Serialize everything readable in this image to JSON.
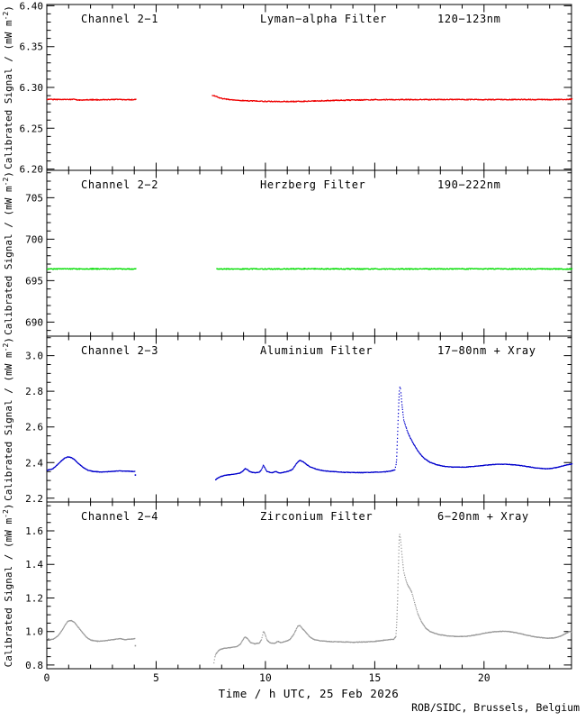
{
  "footer": {
    "credit": "ROB/SIDC, Brussels, Belgium"
  },
  "chart_data": {
    "type": "line",
    "xtitle": "Time / h UTC, 25 Feb 2026",
    "ytitle": "Calibrated Signal / (mW m⁻²)",
    "xlim": [
      0,
      24
    ],
    "xticks": [
      0,
      5,
      10,
      15,
      20
    ],
    "xtick_labels": [
      "0",
      "5",
      "10",
      "15",
      "20"
    ],
    "x_minor_step": 1,
    "grid": false,
    "panels": [
      {
        "channel": "Channel 2−1",
        "filter": "Lyman−alpha Filter",
        "band": "120−123nm",
        "color": "#ee0000",
        "ylim": [
          6.1985,
          6.4015
        ],
        "yticks": [
          6.2,
          6.25,
          6.3,
          6.35,
          6.4
        ],
        "ytick_labels": [
          "6.20",
          "6.25",
          "6.30",
          "6.35",
          "6.40"
        ],
        "y_minor_step": 0.01,
        "noise": 0.0005,
        "segments": [
          [
            [
              0,
              6.2855
            ],
            [
              0.6,
              6.285
            ],
            [
              1.2,
              6.2853
            ],
            [
              1.5,
              6.2845
            ],
            [
              1.8,
              6.285
            ],
            [
              2.4,
              6.2848
            ],
            [
              3.0,
              6.2852
            ],
            [
              3.6,
              6.285
            ],
            [
              4.05,
              6.285
            ]
          ],
          [
            [
              7.55,
              6.2905
            ],
            [
              7.7,
              6.289
            ],
            [
              7.9,
              6.287
            ],
            [
              8.2,
              6.2855
            ],
            [
              8.6,
              6.2845
            ],
            [
              9.0,
              6.2838
            ],
            [
              9.5,
              6.2833
            ],
            [
              10.0,
              6.283
            ],
            [
              10.6,
              6.2828
            ],
            [
              11.2,
              6.2827
            ],
            [
              11.8,
              6.283
            ],
            [
              12.4,
              6.2835
            ],
            [
              13.0,
              6.284
            ],
            [
              13.8,
              6.2845
            ],
            [
              14.6,
              6.2848
            ],
            [
              15.5,
              6.285
            ],
            [
              17.0,
              6.285
            ],
            [
              18.5,
              6.2852
            ],
            [
              20.0,
              6.285
            ],
            [
              21.5,
              6.2852
            ],
            [
              23.0,
              6.285
            ],
            [
              24.0,
              6.2855
            ]
          ]
        ]
      },
      {
        "channel": "Channel 2−2",
        "filter": "Herzberg Filter",
        "band": "190−222nm",
        "color": "#00dd00",
        "ylim": [
          688.3,
          708.3
        ],
        "yticks": [
          690,
          695,
          700,
          705
        ],
        "ytick_labels": [
          "690",
          "695",
          "700",
          "705"
        ],
        "y_minor_step": 1,
        "noise": 0.05,
        "segments": [
          [
            [
              0,
              696.4
            ],
            [
              2.0,
              696.42
            ],
            [
              4.05,
              696.4
            ]
          ],
          [
            [
              7.75,
              696.4
            ],
            [
              12.0,
              696.42
            ],
            [
              16.0,
              696.4
            ],
            [
              20.0,
              696.42
            ],
            [
              24.0,
              696.4
            ]
          ]
        ]
      },
      {
        "channel": "Channel 2−3",
        "filter": "Aluminium Filter",
        "band": "17−80nm + Xray",
        "color": "#0000cc",
        "ylim": [
          2.179,
          3.109
        ],
        "yticks": [
          2.2,
          2.4,
          2.6,
          2.8,
          3.0
        ],
        "ytick_labels": [
          "2.2",
          "2.4",
          "2.6",
          "2.8",
          "3.0"
        ],
        "y_minor_step": 0.05,
        "noise": 0.0012,
        "segments": [
          [
            [
              0,
              2.358
            ],
            [
              0.2,
              2.362
            ],
            [
              0.35,
              2.375
            ],
            [
              0.5,
              2.392
            ],
            [
              0.65,
              2.41
            ],
            [
              0.8,
              2.425
            ],
            [
              0.95,
              2.432
            ],
            [
              1.1,
              2.428
            ],
            [
              1.25,
              2.415
            ],
            [
              1.45,
              2.392
            ],
            [
              1.65,
              2.372
            ],
            [
              1.85,
              2.358
            ],
            [
              2.1,
              2.35
            ],
            [
              2.5,
              2.347
            ],
            [
              2.9,
              2.35
            ],
            [
              3.3,
              2.353
            ],
            [
              3.7,
              2.352
            ],
            [
              4.0,
              2.35
            ]
          ],
          [
            [
              4.05,
              2.33
            ]
          ],
          [
            [
              7.7,
              2.303
            ],
            [
              7.78,
              2.312
            ],
            [
              7.9,
              2.32
            ],
            [
              8.1,
              2.328
            ],
            [
              8.35,
              2.332
            ],
            [
              8.6,
              2.336
            ],
            [
              8.8,
              2.341
            ],
            [
              8.95,
              2.353
            ],
            [
              9.05,
              2.366
            ],
            [
              9.15,
              2.36
            ],
            [
              9.3,
              2.347
            ],
            [
              9.5,
              2.342
            ],
            [
              9.7,
              2.347
            ],
            [
              9.8,
              2.36
            ],
            [
              9.88,
              2.387
            ],
            [
              9.95,
              2.37
            ],
            [
              10.05,
              2.35
            ],
            [
              10.25,
              2.343
            ],
            [
              10.45,
              2.35
            ],
            [
              10.6,
              2.342
            ],
            [
              10.8,
              2.345
            ],
            [
              11.0,
              2.351
            ],
            [
              11.2,
              2.36
            ],
            [
              11.4,
              2.395
            ],
            [
              11.55,
              2.413
            ],
            [
              11.7,
              2.405
            ],
            [
              11.85,
              2.39
            ],
            [
              12.0,
              2.377
            ],
            [
              12.3,
              2.363
            ],
            [
              12.6,
              2.355
            ],
            [
              13.0,
              2.35
            ],
            [
              13.5,
              2.346
            ],
            [
              14.0,
              2.344
            ],
            [
              14.5,
              2.344
            ],
            [
              15.0,
              2.346
            ],
            [
              15.4,
              2.348
            ],
            [
              15.7,
              2.352
            ],
            [
              15.9,
              2.36
            ],
            [
              15.97,
              2.4
            ],
            [
              16.02,
              2.56
            ],
            [
              16.07,
              2.72
            ],
            [
              16.11,
              2.83
            ],
            [
              16.16,
              2.81
            ],
            [
              16.22,
              2.73
            ],
            [
              16.3,
              2.64
            ],
            [
              16.4,
              2.6
            ],
            [
              16.5,
              2.565
            ],
            [
              16.62,
              2.535
            ],
            [
              16.75,
              2.505
            ],
            [
              16.9,
              2.475
            ],
            [
              17.05,
              2.448
            ],
            [
              17.25,
              2.422
            ],
            [
              17.5,
              2.402
            ],
            [
              17.8,
              2.388
            ],
            [
              18.1,
              2.38
            ],
            [
              18.5,
              2.375
            ],
            [
              19.0,
              2.374
            ],
            [
              19.5,
              2.378
            ],
            [
              20.0,
              2.385
            ],
            [
              20.5,
              2.39
            ],
            [
              21.0,
              2.391
            ],
            [
              21.5,
              2.386
            ],
            [
              22.0,
              2.377
            ],
            [
              22.4,
              2.369
            ],
            [
              22.8,
              2.365
            ],
            [
              23.1,
              2.368
            ],
            [
              23.4,
              2.375
            ],
            [
              23.7,
              2.386
            ],
            [
              24.0,
              2.392
            ]
          ]
        ]
      },
      {
        "channel": "Channel 2−4",
        "filter": "Zirconium Filter",
        "band": "6−20nm + Xray",
        "color": "#999999",
        "ylim": [
          0.778,
          1.772
        ],
        "yticks": [
          0.8,
          1.0,
          1.2,
          1.4,
          1.6
        ],
        "ytick_labels": [
          "0.8",
          "1.0",
          "1.2",
          "1.4",
          "1.6"
        ],
        "y_minor_step": 0.05,
        "noise": 0.0013,
        "segments": [
          [
            [
              0,
              0.958
            ],
            [
              0.15,
              0.951
            ],
            [
              0.3,
              0.956
            ],
            [
              0.5,
              0.975
            ],
            [
              0.7,
              1.012
            ],
            [
              0.85,
              1.045
            ],
            [
              0.95,
              1.062
            ],
            [
              1.1,
              1.065
            ],
            [
              1.25,
              1.052
            ],
            [
              1.4,
              1.028
            ],
            [
              1.6,
              0.995
            ],
            [
              1.8,
              0.965
            ],
            [
              2.0,
              0.948
            ],
            [
              2.3,
              0.942
            ],
            [
              2.6,
              0.944
            ],
            [
              2.9,
              0.95
            ],
            [
              3.1,
              0.953
            ],
            [
              3.35,
              0.957
            ],
            [
              3.55,
              0.951
            ],
            [
              3.75,
              0.954
            ],
            [
              4.0,
              0.957
            ]
          ],
          [
            [
              4.05,
              0.915
            ]
          ],
          [
            [
              7.62,
              0.812
            ],
            [
              7.66,
              0.845
            ],
            [
              7.72,
              0.868
            ],
            [
              7.82,
              0.885
            ],
            [
              7.95,
              0.895
            ],
            [
              8.1,
              0.9
            ],
            [
              8.3,
              0.903
            ],
            [
              8.5,
              0.906
            ],
            [
              8.7,
              0.912
            ],
            [
              8.85,
              0.928
            ],
            [
              8.95,
              0.952
            ],
            [
              9.05,
              0.968
            ],
            [
              9.15,
              0.958
            ],
            [
              9.3,
              0.934
            ],
            [
              9.5,
              0.926
            ],
            [
              9.7,
              0.932
            ],
            [
              9.8,
              0.952
            ],
            [
              9.88,
              1.002
            ],
            [
              9.95,
              0.988
            ],
            [
              10.05,
              0.948
            ],
            [
              10.2,
              0.932
            ],
            [
              10.4,
              0.929
            ],
            [
              10.55,
              0.941
            ],
            [
              10.7,
              0.933
            ],
            [
              10.9,
              0.941
            ],
            [
              11.1,
              0.952
            ],
            [
              11.3,
              0.99
            ],
            [
              11.45,
              1.03
            ],
            [
              11.55,
              1.036
            ],
            [
              11.7,
              1.012
            ],
            [
              11.85,
              0.992
            ],
            [
              12.0,
              0.968
            ],
            [
              12.2,
              0.952
            ],
            [
              12.5,
              0.944
            ],
            [
              12.9,
              0.94
            ],
            [
              13.4,
              0.938
            ],
            [
              13.9,
              0.936
            ],
            [
              14.4,
              0.937
            ],
            [
              14.9,
              0.94
            ],
            [
              15.3,
              0.946
            ],
            [
              15.6,
              0.951
            ],
            [
              15.85,
              0.954
            ],
            [
              15.95,
              0.97
            ],
            [
              16.0,
              1.1
            ],
            [
              16.05,
              1.35
            ],
            [
              16.1,
              1.59
            ],
            [
              16.15,
              1.56
            ],
            [
              16.22,
              1.46
            ],
            [
              16.3,
              1.36
            ],
            [
              16.4,
              1.305
            ],
            [
              16.5,
              1.272
            ],
            [
              16.58,
              1.258
            ],
            [
              16.68,
              1.23
            ],
            [
              16.8,
              1.17
            ],
            [
              16.95,
              1.105
            ],
            [
              17.1,
              1.06
            ],
            [
              17.3,
              1.022
            ],
            [
              17.5,
              1.0
            ],
            [
              17.7,
              0.99
            ],
            [
              17.95,
              0.981
            ],
            [
              18.3,
              0.974
            ],
            [
              18.7,
              0.97
            ],
            [
              19.1,
              0.971
            ],
            [
              19.4,
              0.975
            ],
            [
              19.7,
              0.982
            ],
            [
              20.0,
              0.99
            ],
            [
              20.4,
              0.998
            ],
            [
              20.8,
              1.001
            ],
            [
              21.1,
              1.0
            ],
            [
              21.4,
              0.994
            ],
            [
              21.7,
              0.985
            ],
            [
              22.0,
              0.976
            ],
            [
              22.3,
              0.968
            ],
            [
              22.6,
              0.963
            ],
            [
              22.9,
              0.96
            ],
            [
              23.2,
              0.962
            ],
            [
              23.45,
              0.97
            ],
            [
              23.7,
              0.988
            ],
            [
              23.9,
              1.0
            ],
            [
              24.0,
              0.996
            ]
          ]
        ]
      }
    ]
  }
}
